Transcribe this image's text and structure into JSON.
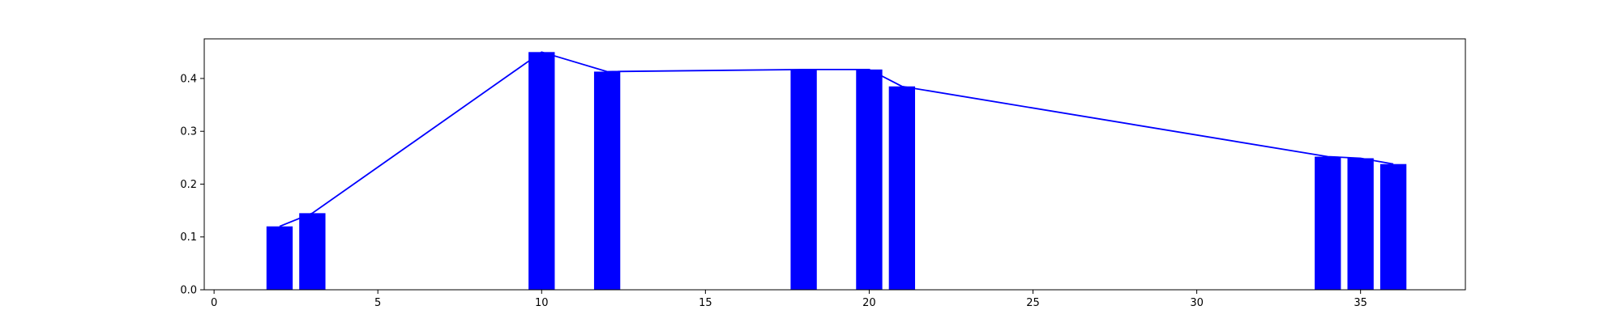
{
  "chart_data": {
    "type": "bar",
    "title": "",
    "xlabel": "",
    "ylabel": "",
    "xlim": [
      -0.3,
      38.2
    ],
    "ylim": [
      0.0,
      0.475
    ],
    "grid": false,
    "xticks": [
      0,
      5,
      10,
      15,
      20,
      25,
      30,
      35
    ],
    "yticks": [
      0.0,
      0.1,
      0.2,
      0.3,
      0.4
    ],
    "xtick_labels": [
      "0",
      "5",
      "10",
      "15",
      "20",
      "25",
      "30",
      "35"
    ],
    "ytick_labels": [
      "0.0",
      "0.1",
      "0.2",
      "0.3",
      "0.4"
    ],
    "bar_width": 0.8,
    "color": "#0000ff",
    "x": [
      2,
      3,
      10,
      12,
      18,
      20,
      21,
      34,
      35,
      36
    ],
    "values": [
      0.12,
      0.145,
      0.45,
      0.413,
      0.417,
      0.417,
      0.385,
      0.252,
      0.249,
      0.238
    ],
    "line_x": [
      2,
      3,
      10,
      12,
      18,
      20,
      21,
      34,
      35,
      36
    ],
    "line_values": [
      0.12,
      0.145,
      0.45,
      0.413,
      0.417,
      0.417,
      0.385,
      0.252,
      0.249,
      0.238
    ]
  }
}
